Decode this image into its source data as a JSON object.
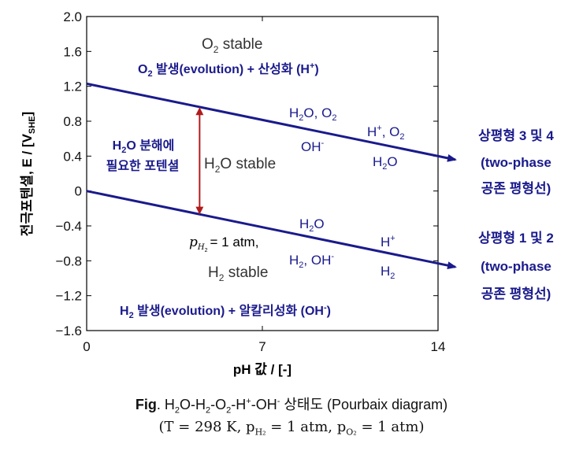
{
  "chart_data": {
    "type": "line",
    "xlabel": "pH 값 / [-]",
    "ylabel": "전극포텐셜, E / [V",
    "ylabel_sub": "SHE",
    "ylabel_end": "]",
    "xlim": [
      0,
      14
    ],
    "ylim": [
      -1.6,
      2.0
    ],
    "x_ticks": [
      "0",
      "7",
      "14"
    ],
    "x_tick_values": [
      0,
      7,
      14
    ],
    "y_ticks": [
      "2.0",
      "1.6",
      "1.2",
      "0.8",
      "0.4",
      "0",
      "−0.4",
      "−0.8",
      "−1.2",
      "−1.6"
    ],
    "y_tick_values": [
      2.0,
      1.6,
      1.2,
      0.8,
      0.4,
      0,
      -0.4,
      -0.8,
      -1.2,
      -1.6
    ],
    "series": [
      {
        "x": [
          0,
          14
        ],
        "y": [
          1.23,
          0.4
        ],
        "color": "#1a1a8c"
      },
      {
        "x": [
          0,
          14
        ],
        "y": [
          0.0,
          -0.83
        ],
        "color": "#1a1a8c"
      }
    ],
    "double_arrow": {
      "x": 4.5,
      "y_top": 0.96,
      "y_bottom": -0.27,
      "color": "#b01c1c"
    }
  },
  "labels": {
    "o2_stable_main": "O",
    "o2_stable_sub": "2",
    "o2_stable_rest": " stable",
    "o2_evolution_a": "O",
    "o2_evolution_sub": "2",
    "o2_evolution_b": " 발생(evolution) + 산성화 (H",
    "o2_evolution_sup": "+",
    "o2_evolution_c": ")",
    "h2o_o2_a": "H",
    "h2o_o2_sub1": "2",
    "h2o_o2_b": "O, O",
    "h2o_o2_sub2": "2",
    "oh_minus": "OH",
    "minus": "-",
    "hplus_o2_a": "H",
    "hplus_o2_sup": "+",
    "hplus_o2_b": ", O",
    "hplus_o2_sub": "2",
    "h2o_right_a": "H",
    "h2o_right_sub": "2",
    "h2o_right_b": "O",
    "h2o_decomp_a": "H",
    "h2o_decomp_sub": "2",
    "h2o_decomp_b": "O 분해에",
    "h2o_decomp_line2": "필요한 포텐셜",
    "h2o_stable_a": "H",
    "h2o_stable_sub": "2",
    "h2o_stable_b": "O stable",
    "lower_h2o_a": "H",
    "lower_h2o_sub": "2",
    "lower_h2o_b": "O",
    "hplus_a": "H",
    "hplus_sup": "+",
    "h2_oh_a": "H",
    "h2_oh_sub": "2",
    "h2_oh_b": ", OH",
    "h2_oh_sup": "-",
    "h2_a": "H",
    "h2_sub": "2",
    "p_h2_a": "p",
    "p_h2_sub": "H",
    "p_h2_subsub": "2",
    "p_h2_b": "= 1 atm,",
    "h2_stable_a": "H",
    "h2_stable_sub": "2",
    "h2_stable_b": " stable",
    "h2_evolution_a": "H",
    "h2_evolution_sub": "2",
    "h2_evolution_b": " 발생(evolution) + 알칼리성화 (OH",
    "h2_evolution_sup": "-",
    "h2_evolution_c": ")",
    "upper_right_line1": "상평형 3 및 4",
    "upper_right_line2": "(two-phase",
    "upper_right_line3": "공존 평형선)",
    "lower_right_line1": "상평형 1 및 2",
    "lower_right_line2": "(two-phase",
    "lower_right_line3": "공존 평형선)"
  },
  "caption": {
    "fig": "Fig",
    "dot": ".",
    "text_a": " H",
    "s1": "2",
    "text_b": "O-H",
    "s2": "2",
    "text_c": "-O",
    "s3": "2",
    "text_d": "-H",
    "sup1": "+",
    "text_e": "-OH",
    "sup2": "-",
    "text_f": " 상태도 (Pourbaix diagram)",
    "line2": "(T  =  298 K, p",
    "line2_sub1": "H₂",
    "line2_mid": " =  1 atm, p",
    "line2_sub2": "O₂",
    "line2_end": " =  1 atm)"
  },
  "colors": {
    "line": "#1a1a8c",
    "arrow": "#b01c1c",
    "text_blue": "#1a1a8c",
    "text_gray": "#333333"
  }
}
